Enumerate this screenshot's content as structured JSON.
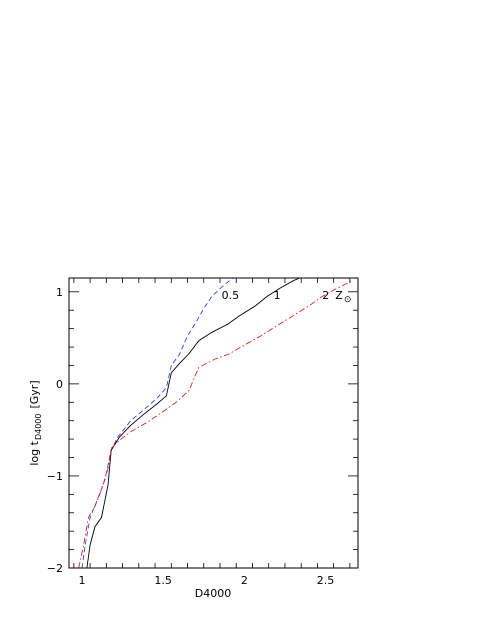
{
  "chart_data": {
    "type": "line",
    "xlabel": "D4000",
    "ylabel": "log t",
    "ylabel_sub": "D4000",
    "ylabel_unit": "[Gyr]",
    "xlim": [
      0.92,
      2.7
    ],
    "ylim": [
      -2,
      1.15
    ],
    "x_ticks": [
      {
        "value": 1,
        "label": "1"
      },
      {
        "value": 1.5,
        "label": "1.5"
      },
      {
        "value": 2,
        "label": "2"
      },
      {
        "value": 2.5,
        "label": "2.5"
      }
    ],
    "y_ticks": [
      {
        "value": -2,
        "label": "−2"
      },
      {
        "value": -1,
        "label": "−1"
      },
      {
        "value": 0,
        "label": "0"
      },
      {
        "value": 1,
        "label": "1"
      }
    ],
    "grid": false,
    "legend": "none",
    "series": [
      {
        "label": "0.5",
        "color": "#3344dd",
        "dash": "dashed",
        "points": [
          [
            1.0,
            -2.0
          ],
          [
            1.02,
            -1.75
          ],
          [
            1.05,
            -1.45
          ],
          [
            1.09,
            -1.28
          ],
          [
            1.14,
            -1.05
          ],
          [
            1.18,
            -0.72
          ],
          [
            1.22,
            -0.58
          ],
          [
            1.3,
            -0.4
          ],
          [
            1.38,
            -0.28
          ],
          [
            1.46,
            -0.16
          ],
          [
            1.52,
            -0.04
          ],
          [
            1.55,
            0.2
          ],
          [
            1.6,
            0.32
          ],
          [
            1.65,
            0.52
          ],
          [
            1.7,
            0.66
          ],
          [
            1.75,
            0.82
          ],
          [
            1.8,
            0.95
          ],
          [
            1.86,
            1.05
          ],
          [
            1.93,
            1.15
          ]
        ]
      },
      {
        "label": "1",
        "color": "#000000",
        "dash": "solid",
        "points": [
          [
            1.03,
            -2.0
          ],
          [
            1.05,
            -1.75
          ],
          [
            1.08,
            -1.55
          ],
          [
            1.12,
            -1.45
          ],
          [
            1.16,
            -1.1
          ],
          [
            1.18,
            -0.72
          ],
          [
            1.23,
            -0.58
          ],
          [
            1.3,
            -0.45
          ],
          [
            1.38,
            -0.33
          ],
          [
            1.46,
            -0.22
          ],
          [
            1.52,
            -0.13
          ],
          [
            1.55,
            0.12
          ],
          [
            1.6,
            0.22
          ],
          [
            1.66,
            0.33
          ],
          [
            1.72,
            0.47
          ],
          [
            1.8,
            0.56
          ],
          [
            1.9,
            0.65
          ],
          [
            1.97,
            0.74
          ],
          [
            2.07,
            0.85
          ],
          [
            2.14,
            0.95
          ],
          [
            2.22,
            1.04
          ],
          [
            2.3,
            1.12
          ],
          [
            2.34,
            1.15
          ]
        ]
      },
      {
        "label": "2",
        "color": "#dd2222",
        "dash": "dashdot",
        "points": [
          [
            0.98,
            -2.0
          ],
          [
            1.01,
            -1.75
          ],
          [
            1.04,
            -1.45
          ],
          [
            1.08,
            -1.33
          ],
          [
            1.12,
            -1.15
          ],
          [
            1.16,
            -0.92
          ],
          [
            1.18,
            -0.7
          ],
          [
            1.24,
            -0.6
          ],
          [
            1.3,
            -0.52
          ],
          [
            1.4,
            -0.42
          ],
          [
            1.5,
            -0.3
          ],
          [
            1.58,
            -0.2
          ],
          [
            1.66,
            -0.07
          ],
          [
            1.7,
            0.1
          ],
          [
            1.72,
            0.18
          ],
          [
            1.82,
            0.27
          ],
          [
            1.9,
            0.32
          ],
          [
            2.0,
            0.42
          ],
          [
            2.1,
            0.52
          ],
          [
            2.2,
            0.63
          ],
          [
            2.3,
            0.74
          ],
          [
            2.4,
            0.85
          ],
          [
            2.48,
            0.95
          ],
          [
            2.55,
            1.02
          ],
          [
            2.62,
            1.08
          ],
          [
            2.66,
            1.12
          ]
        ]
      }
    ],
    "annotations": [
      {
        "text": "0.5",
        "x": 1.86,
        "y": 0.92
      },
      {
        "text": "1",
        "x": 2.18,
        "y": 0.92
      },
      {
        "text": "2",
        "x": 2.48,
        "y": 0.92
      },
      {
        "text": "Z",
        "sub": "⊙",
        "x": 2.56,
        "y": 0.92
      }
    ]
  }
}
